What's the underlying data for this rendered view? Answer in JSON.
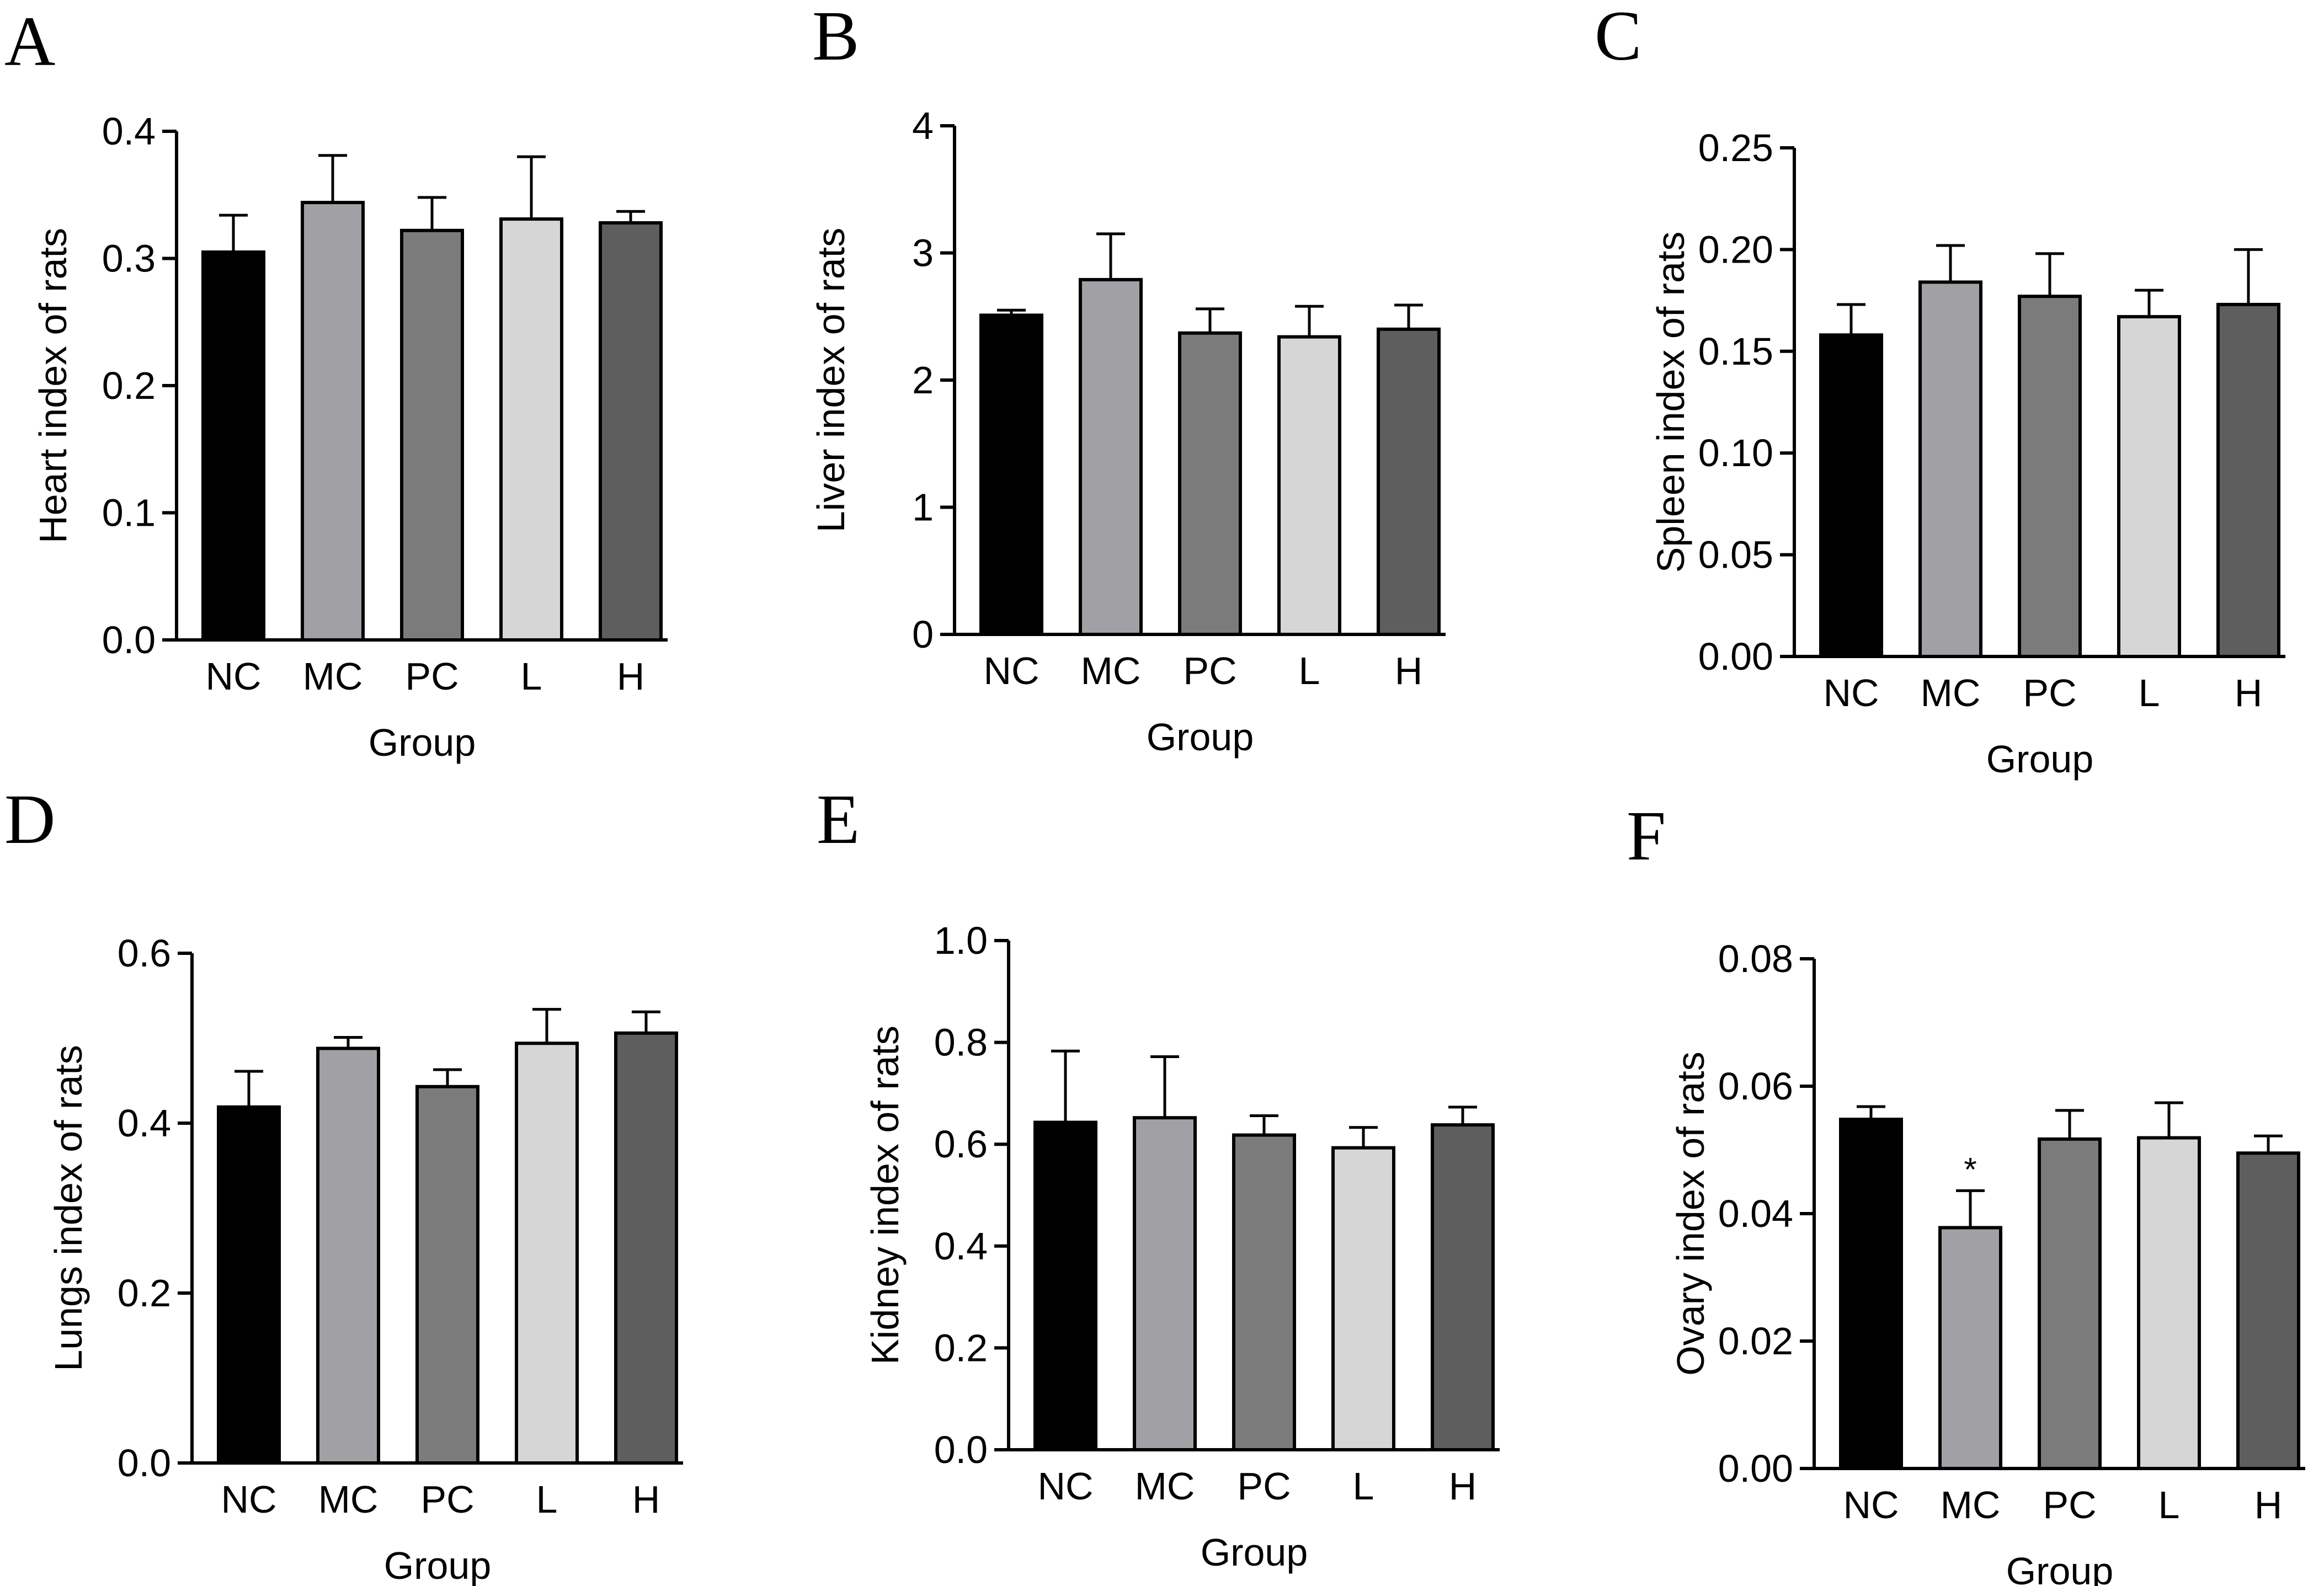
{
  "figure": {
    "xlabel": "Group",
    "categories": [
      "NC",
      "MC",
      "PC",
      "L",
      "H"
    ],
    "bar_colors": [
      "#000000",
      "#a0a0a5",
      "#7b7b7b",
      "#d6d6d6",
      "#5e5e5e"
    ]
  },
  "chart_data": [
    {
      "panel": "A",
      "type": "bar",
      "ylabel": "Heart index of rats",
      "xlabel": "Group",
      "categories": [
        "NC",
        "MC",
        "PC",
        "L",
        "H"
      ],
      "values": [
        0.305,
        0.344,
        0.322,
        0.331,
        0.328
      ],
      "errors": [
        0.029,
        0.037,
        0.026,
        0.049,
        0.009
      ],
      "ylim": [
        0,
        0.4
      ],
      "yticks": [
        0.0,
        0.1,
        0.2,
        0.3,
        0.4
      ],
      "ytick_labels": [
        "0.0",
        "0.1",
        "0.2",
        "0.3",
        "0.4"
      ],
      "annotations": [
        "",
        "",
        "",
        "",
        ""
      ]
    },
    {
      "panel": "B",
      "type": "bar",
      "ylabel": "Liver index of rats",
      "xlabel": "Group",
      "categories": [
        "NC",
        "MC",
        "PC",
        "L",
        "H"
      ],
      "values": [
        2.51,
        2.79,
        2.37,
        2.34,
        2.4
      ],
      "errors": [
        0.04,
        0.36,
        0.19,
        0.24,
        0.19
      ],
      "ylim": [
        0,
        4
      ],
      "yticks": [
        0,
        1,
        2,
        3,
        4
      ],
      "ytick_labels": [
        "0",
        "1",
        "2",
        "3",
        "4"
      ],
      "annotations": [
        "",
        "",
        "",
        "",
        ""
      ]
    },
    {
      "panel": "C",
      "type": "bar",
      "ylabel": "Spleen index of rats",
      "xlabel": "Group",
      "categories": [
        "NC",
        "MC",
        "PC",
        "L",
        "H"
      ],
      "values": [
        0.158,
        0.184,
        0.177,
        0.167,
        0.173
      ],
      "errors": [
        0.015,
        0.018,
        0.021,
        0.013,
        0.027
      ],
      "ylim": [
        0,
        0.25
      ],
      "yticks": [
        0.0,
        0.05,
        0.1,
        0.15,
        0.2,
        0.25
      ],
      "ytick_labels": [
        "0.00",
        "0.05",
        "0.10",
        "0.15",
        "0.20",
        "0.25"
      ],
      "annotations": [
        "",
        "",
        "",
        "",
        ""
      ]
    },
    {
      "panel": "D",
      "type": "bar",
      "ylabel": "Lungs index of rats",
      "xlabel": "Group",
      "categories": [
        "NC",
        "MC",
        "PC",
        "L",
        "H"
      ],
      "values": [
        0.419,
        0.488,
        0.443,
        0.494,
        0.506
      ],
      "errors": [
        0.042,
        0.013,
        0.02,
        0.04,
        0.025
      ],
      "ylim": [
        0,
        0.6
      ],
      "yticks": [
        0.0,
        0.2,
        0.4,
        0.6
      ],
      "ytick_labels": [
        "0.0",
        "0.2",
        "0.4",
        "0.6"
      ],
      "annotations": [
        "",
        "",
        "",
        "",
        ""
      ]
    },
    {
      "panel": "E",
      "type": "bar",
      "ylabel": "Kidney index of rats",
      "xlabel": "Group",
      "categories": [
        "NC",
        "MC",
        "PC",
        "L",
        "H"
      ],
      "values": [
        0.643,
        0.652,
        0.618,
        0.593,
        0.638
      ],
      "errors": [
        0.14,
        0.12,
        0.038,
        0.04,
        0.035
      ],
      "ylim": [
        0,
        1.0
      ],
      "yticks": [
        0.0,
        0.2,
        0.4,
        0.6,
        0.8,
        1.0
      ],
      "ytick_labels": [
        "0.0",
        "0.2",
        "0.4",
        "0.6",
        "0.8",
        "1.0"
      ],
      "annotations": [
        "",
        "",
        "",
        "",
        ""
      ]
    },
    {
      "panel": "F",
      "type": "bar",
      "ylabel": "Ovary index of rats",
      "xlabel": "Group",
      "categories": [
        "NC",
        "MC",
        "PC",
        "L",
        "H"
      ],
      "values": [
        0.0548,
        0.0378,
        0.0517,
        0.0519,
        0.0495
      ],
      "errors": [
        0.002,
        0.0058,
        0.0045,
        0.0055,
        0.0027
      ],
      "ylim": [
        0,
        0.08
      ],
      "yticks": [
        0.0,
        0.02,
        0.04,
        0.06,
        0.08
      ],
      "ytick_labels": [
        "0.00",
        "0.02",
        "0.04",
        "0.06",
        "0.08"
      ],
      "annotations": [
        "",
        "*",
        "",
        "",
        ""
      ]
    }
  ]
}
